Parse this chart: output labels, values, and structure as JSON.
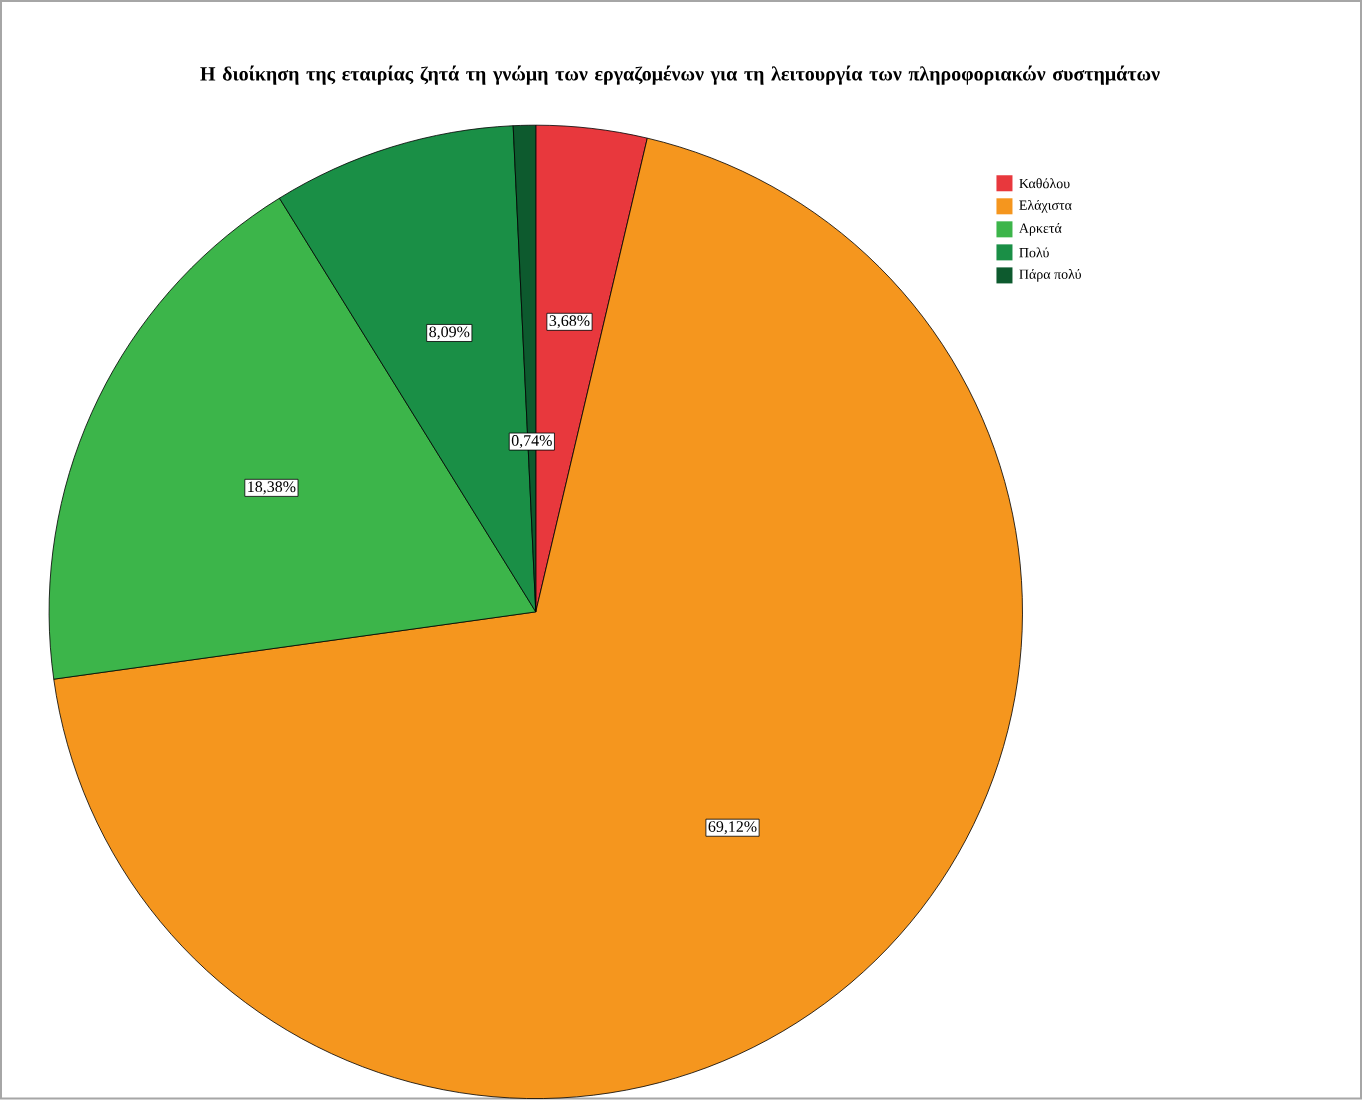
{
  "chart_data": {
    "type": "pie",
    "title": "Η διοίκηση της εταιρίας ζητά τη γνώμη των εργαζομένων για τη λειτουργία των πληροφοριακών συστημάτων",
    "categories": [
      "Καθόλου",
      "Ελάχιστα",
      "Αρκετά",
      "Πολύ",
      "Πάρα πολύ"
    ],
    "values": [
      3.68,
      69.12,
      18.38,
      8.09,
      0.74
    ],
    "value_labels": [
      "3,68%",
      "69,12%",
      "18,38%",
      "8,09%",
      "0,74%"
    ],
    "colors": [
      "#e8383d",
      "#f5961e",
      "#3cb54a",
      "#1a8f46",
      "#0d5a2e"
    ],
    "legend": "top right"
  }
}
